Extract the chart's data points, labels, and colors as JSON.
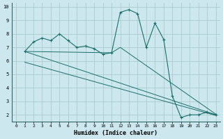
{
  "xlabel": "Humidex (Indice chaleur)",
  "bg_color": "#cce8ee",
  "grid_color": "#aacccc",
  "line_color": "#1a6e6a",
  "xlim": [
    -0.5,
    23.5
  ],
  "ylim": [
    1.5,
    10.3
  ],
  "xtick_labels": [
    "0",
    "1",
    "2",
    "3",
    "4",
    "5",
    "6",
    "7",
    "8",
    "9",
    "10",
    "11",
    "12",
    "13",
    "14",
    "15",
    "16",
    "17",
    "18",
    "19",
    "20",
    "21",
    "22",
    "23"
  ],
  "xticks": [
    0,
    1,
    2,
    3,
    4,
    5,
    6,
    7,
    8,
    9,
    10,
    11,
    12,
    13,
    14,
    15,
    16,
    17,
    18,
    19,
    20,
    21,
    22,
    23
  ],
  "yticks": [
    2,
    3,
    4,
    5,
    6,
    7,
    8,
    9,
    10
  ],
  "line1_x": [
    1,
    2,
    3,
    4,
    5,
    6,
    7,
    8,
    9,
    10,
    11,
    12,
    13,
    14,
    15,
    16,
    17,
    18,
    19,
    20,
    21,
    22,
    23
  ],
  "line1_y": [
    6.7,
    7.4,
    7.7,
    7.5,
    8.0,
    7.5,
    7.0,
    7.1,
    6.9,
    6.5,
    6.6,
    9.6,
    9.8,
    9.5,
    7.0,
    8.8,
    7.6,
    3.4,
    1.8,
    2.0,
    2.0,
    2.2,
    2.0
  ],
  "line2_x": [
    1,
    23
  ],
  "line2_y": [
    6.7,
    2.0
  ],
  "line3_x": [
    1,
    23
  ],
  "line3_y": [
    5.9,
    1.95
  ],
  "line4_x": [
    1,
    11,
    12,
    23
  ],
  "line4_y": [
    6.7,
    6.6,
    7.0,
    2.05
  ]
}
